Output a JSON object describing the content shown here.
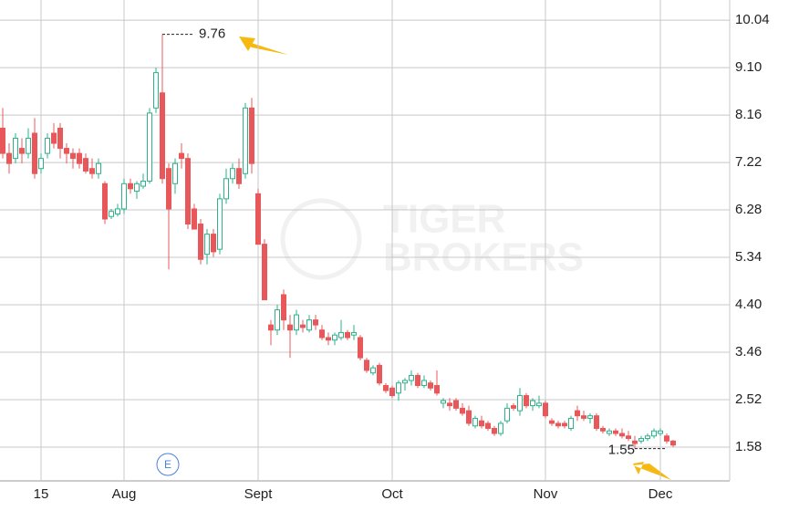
{
  "chart_data": {
    "type": "candlestick",
    "categories": [
      null,
      null,
      null,
      null,
      null,
      null,
      "15",
      null,
      null,
      null,
      null,
      null,
      null,
      null,
      null,
      null,
      null,
      null,
      null,
      "Aug",
      null,
      null,
      null,
      null,
      null,
      null,
      null,
      null,
      null,
      null,
      null,
      null,
      null,
      null,
      null,
      null,
      null,
      null,
      null,
      null,
      "Sept",
      null,
      null,
      null,
      null,
      null,
      null,
      null,
      null,
      null,
      null,
      null,
      null,
      null,
      null,
      null,
      null,
      null,
      null,
      null,
      null,
      "Oct",
      null,
      null,
      null,
      null,
      null,
      null,
      null,
      null,
      null,
      null,
      null,
      null,
      null,
      null,
      null,
      null,
      null,
      null,
      null,
      null,
      null,
      null,
      null,
      "Nov",
      null,
      null,
      null,
      null,
      null,
      null,
      null,
      null,
      null,
      null,
      null,
      null,
      null,
      null,
      null,
      null,
      null,
      "Dec",
      null,
      null
    ],
    "open": [
      7.9,
      7.4,
      7.3,
      7.5,
      7.4,
      7.8,
      7.1,
      7.4,
      7.8,
      7.9,
      7.5,
      7.4,
      7.4,
      7.3,
      7.1,
      7.0,
      6.8,
      6.15,
      6.2,
      6.3,
      6.8,
      6.65,
      6.75,
      6.85,
      8.3,
      8.6,
      7.1,
      6.8,
      7.4,
      7.3,
      6.3,
      6.0,
      5.4,
      5.8,
      5.5,
      6.5,
      6.9,
      7.1,
      7.0,
      8.3,
      6.6,
      5.6,
      4.0,
      3.9,
      4.6,
      4.0,
      3.9,
      4.0,
      3.9,
      4.1,
      3.9,
      3.75,
      3.7,
      3.75,
      3.85,
      3.8,
      3.75,
      3.3,
      3.05,
      3.2,
      2.8,
      2.75,
      2.65,
      2.85,
      2.9,
      3.0,
      2.8,
      2.85,
      2.8,
      2.45,
      2.45,
      2.5,
      2.35,
      2.3,
      2.0,
      2.1,
      2.05,
      1.95,
      1.85,
      2.1,
      2.4,
      2.3,
      2.6,
      2.4,
      2.4,
      2.45,
      2.1,
      2.05,
      2.05,
      1.95,
      2.3,
      2.2,
      2.15,
      2.2,
      1.95,
      1.85,
      1.9,
      1.85,
      1.8,
      1.7,
      1.7,
      1.75,
      1.8,
      1.85,
      1.8,
      1.7
    ],
    "high": [
      8.3,
      7.6,
      7.8,
      7.7,
      7.9,
      8.1,
      7.4,
      7.8,
      8.0,
      8.0,
      7.6,
      7.5,
      7.5,
      7.4,
      7.3,
      7.3,
      6.85,
      6.3,
      6.4,
      6.9,
      6.9,
      6.85,
      7.0,
      8.3,
      9.1,
      9.76,
      7.2,
      7.3,
      7.6,
      7.4,
      6.4,
      6.1,
      5.9,
      5.9,
      6.6,
      7.1,
      7.2,
      7.3,
      8.4,
      8.5,
      6.7,
      5.7,
      4.1,
      4.4,
      4.7,
      4.2,
      4.3,
      4.1,
      4.2,
      4.2,
      4.0,
      3.85,
      3.85,
      4.1,
      3.9,
      4.0,
      3.8,
      3.35,
      3.2,
      3.25,
      2.85,
      2.8,
      2.9,
      2.95,
      3.1,
      3.05,
      3.0,
      2.9,
      3.1,
      2.55,
      2.55,
      2.55,
      2.45,
      2.4,
      2.2,
      2.2,
      2.1,
      2.0,
      2.1,
      2.45,
      2.45,
      2.75,
      2.65,
      2.55,
      2.6,
      2.5,
      2.15,
      2.1,
      2.1,
      2.2,
      2.4,
      2.3,
      2.25,
      2.25,
      2.0,
      1.95,
      1.95,
      1.95,
      1.9,
      1.8,
      1.8,
      1.85,
      1.95,
      1.95,
      1.85,
      1.72
    ],
    "low": [
      7.3,
      7.0,
      7.2,
      7.2,
      7.3,
      6.9,
      7.0,
      7.3,
      7.5,
      7.3,
      7.2,
      7.1,
      7.1,
      7.0,
      6.9,
      6.9,
      6.0,
      6.1,
      6.15,
      6.2,
      6.6,
      6.5,
      6.7,
      6.8,
      8.2,
      6.8,
      5.1,
      6.6,
      7.1,
      5.9,
      5.9,
      5.2,
      5.2,
      5.35,
      5.4,
      6.4,
      6.8,
      6.7,
      6.9,
      7.0,
      5.6,
      4.5,
      3.6,
      3.8,
      3.9,
      3.35,
      3.8,
      3.85,
      3.85,
      3.9,
      3.7,
      3.6,
      3.6,
      3.7,
      3.7,
      3.7,
      3.3,
      3.05,
      3.0,
      2.8,
      2.65,
      2.55,
      2.5,
      2.7,
      2.8,
      2.75,
      2.75,
      2.7,
      2.6,
      2.35,
      2.3,
      2.3,
      2.2,
      2.0,
      1.95,
      1.95,
      1.9,
      1.8,
      1.8,
      2.05,
      2.3,
      2.2,
      2.35,
      2.3,
      2.35,
      2.15,
      2.0,
      1.95,
      1.95,
      1.9,
      2.1,
      2.1,
      2.05,
      1.9,
      1.85,
      1.8,
      1.8,
      1.75,
      1.7,
      1.55,
      1.65,
      1.7,
      1.75,
      1.8,
      1.65,
      1.58
    ],
    "close": [
      7.4,
      7.2,
      7.7,
      7.4,
      7.7,
      7.0,
      7.3,
      7.7,
      7.6,
      7.5,
      7.4,
      7.3,
      7.2,
      7.05,
      7.0,
      7.2,
      6.1,
      6.25,
      6.3,
      6.8,
      6.7,
      6.8,
      6.85,
      8.2,
      9.0,
      6.9,
      6.3,
      7.2,
      7.3,
      6.0,
      5.9,
      5.3,
      5.8,
      5.45,
      6.5,
      6.9,
      7.1,
      6.8,
      8.3,
      7.2,
      5.6,
      4.5,
      3.9,
      4.3,
      4.1,
      3.9,
      4.2,
      3.95,
      4.1,
      4.0,
      3.75,
      3.7,
      3.8,
      3.85,
      3.75,
      3.85,
      3.35,
      3.1,
      3.15,
      2.85,
      2.7,
      2.6,
      2.85,
      2.9,
      3.0,
      2.8,
      2.9,
      2.75,
      2.65,
      2.5,
      2.4,
      2.35,
      2.25,
      2.05,
      2.15,
      2.0,
      1.95,
      1.85,
      2.05,
      2.35,
      2.35,
      2.6,
      2.4,
      2.5,
      2.45,
      2.2,
      2.05,
      2.0,
      2.0,
      2.15,
      2.2,
      2.15,
      2.2,
      1.95,
      1.9,
      1.9,
      1.85,
      1.8,
      1.75,
      1.65,
      1.75,
      1.8,
      1.9,
      1.9,
      1.7,
      1.62
    ],
    "up_color": "#2bb38a",
    "down_color": "#e8585a",
    "ylim": [
      0.91,
      10.44
    ],
    "yticks": [
      1.58,
      2.52,
      3.46,
      {
        "value": 4.4,
        "label": "4.40"
      },
      5.34,
      6.28,
      7.22,
      8.16,
      {
        "value": 9.1,
        "label": "9.10"
      },
      10.04
    ],
    "grid": true,
    "annotations": [
      {
        "label": "9.76",
        "value": 9.76,
        "kind": "high"
      },
      {
        "label": "1.55",
        "value": 1.55,
        "kind": "low"
      }
    ],
    "event_label": "E",
    "watermark": [
      "TIGER",
      "BROKERS"
    ]
  }
}
